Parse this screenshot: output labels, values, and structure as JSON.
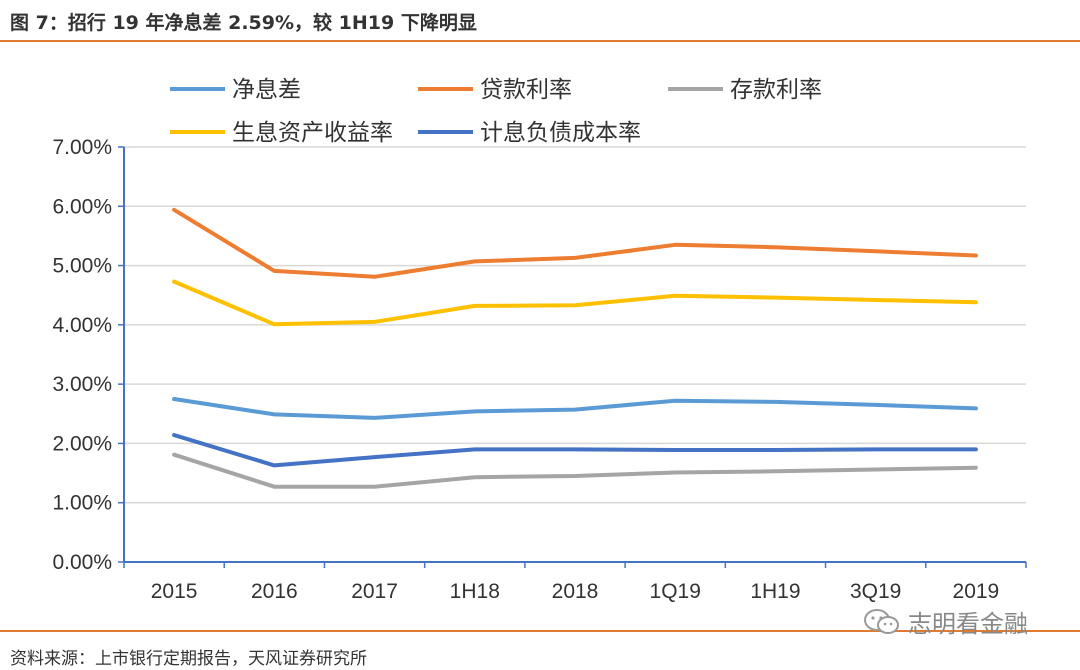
{
  "figure": {
    "title": "图 7：招行 19 年净息差 2.59%，较 1H19 下降明显",
    "source": "资料来源：上市银行定期报告，天风证券研究所",
    "watermark": "志明看金融",
    "accent_color": "#E07A2E"
  },
  "chart_data": {
    "type": "line",
    "categories": [
      "2015",
      "2016",
      "2017",
      "1H18",
      "2018",
      "1Q19",
      "1H19",
      "3Q19",
      "2019"
    ],
    "ylim": [
      0,
      7
    ],
    "ytick_step": 1,
    "ytick_labels": [
      "0.00%",
      "1.00%",
      "2.00%",
      "3.00%",
      "4.00%",
      "5.00%",
      "6.00%",
      "7.00%"
    ],
    "grid": true,
    "legend_position": "top",
    "series": [
      {
        "name": "净息差",
        "color": "#5B9BD5",
        "values": [
          2.75,
          2.49,
          2.43,
          2.54,
          2.57,
          2.72,
          2.7,
          2.65,
          2.59
        ]
      },
      {
        "name": "贷款利率",
        "color": "#ED7D31",
        "values": [
          5.94,
          4.91,
          4.81,
          5.07,
          5.13,
          5.35,
          5.31,
          5.24,
          5.17
        ]
      },
      {
        "name": "存款利率",
        "color": "#A5A5A5",
        "values": [
          1.81,
          1.27,
          1.27,
          1.43,
          1.45,
          1.51,
          1.53,
          1.56,
          1.59
        ]
      },
      {
        "name": "生息资产收益率",
        "color": "#FFC000",
        "values": [
          4.73,
          4.01,
          4.05,
          4.32,
          4.33,
          4.49,
          4.46,
          4.42,
          4.38
        ]
      },
      {
        "name": "计息负债成本率",
        "color": "#4472C4",
        "values": [
          2.14,
          1.63,
          1.77,
          1.9,
          1.9,
          1.89,
          1.89,
          1.9,
          1.9
        ]
      }
    ]
  }
}
